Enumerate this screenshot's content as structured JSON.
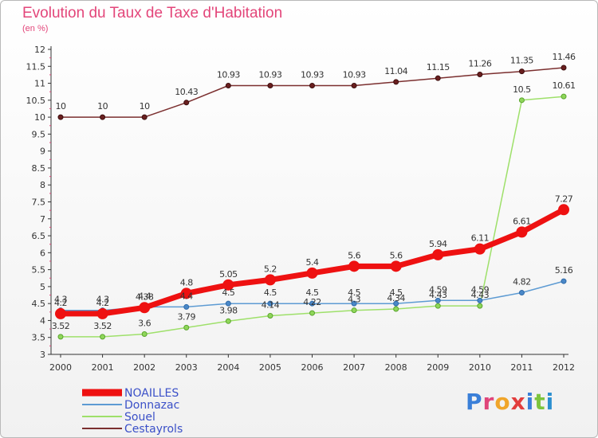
{
  "title": "Evolution du Taux de Taxe d'Habitation",
  "unit_label": "(en %)",
  "logo": {
    "text": "Proxiti",
    "letter_colors": [
      "#3a7fd8",
      "#e0457a",
      "#f0a52a",
      "#e23d3d",
      "#3a7fd8",
      "#7cc43e",
      "#2b8fd0"
    ]
  },
  "chart_data": {
    "type": "line",
    "title": "Evolution du Taux de Taxe d'Habitation",
    "ylabel": "(en %)",
    "xlabel": "",
    "x": [
      "2000",
      "2001",
      "2002",
      "2003",
      "2004",
      "2005",
      "2006",
      "2007",
      "2008",
      "2009",
      "2010",
      "2011",
      "2012"
    ],
    "ylim": [
      3,
      12
    ],
    "yticks": [
      "3",
      "3.5",
      "4",
      "4.5",
      "5",
      "5.5",
      "6",
      "6.5",
      "7",
      "7.5",
      "8",
      "8.5",
      "9",
      "9.5",
      "10",
      "10.5",
      "11",
      "11.5",
      "12"
    ],
    "grid": false,
    "legend_position": "bottom-left",
    "series": [
      {
        "name": "NOAILLES",
        "color": "#ee1111",
        "values": [
          4.2,
          4.2,
          4.38,
          4.8,
          5.05,
          5.2,
          5.4,
          5.6,
          5.6,
          5.94,
          6.11,
          6.61,
          7.27
        ],
        "labels": [
          "4.2",
          "4.2",
          "4.38",
          "4.8",
          "5.05",
          "5.2",
          "5.4",
          "5.6",
          "5.6",
          "5.94",
          "6.11",
          "6.61",
          "7.27"
        ]
      },
      {
        "name": "Donnazac",
        "color": "#5d9bd3",
        "values": [
          4.3,
          4.3,
          4.4,
          4.4,
          4.5,
          4.5,
          4.5,
          4.5,
          4.5,
          4.59,
          4.59,
          4.82,
          5.16
        ],
        "labels": [
          "4.3",
          "4.3",
          "4.4",
          "4.4",
          "4.5",
          "4.5",
          "4.5",
          "4.5",
          "4.5",
          "4.59",
          "4.59",
          "4.82",
          "5.16"
        ]
      },
      {
        "name": "Souel",
        "color": "#9ee06a",
        "values": [
          3.52,
          3.52,
          3.6,
          3.79,
          3.98,
          4.14,
          4.22,
          4.3,
          4.34,
          4.43,
          4.43,
          10.5,
          10.61
        ],
        "labels": [
          "3.52",
          "3.52",
          "3.6",
          "3.79",
          "3.98",
          "4.14",
          "4.22",
          "4.3",
          "4.34",
          "4.43",
          "4.43",
          "10.5",
          "10.61"
        ]
      },
      {
        "name": "Cestayrols",
        "color": "#7b2f2f",
        "values": [
          10,
          10,
          10,
          10.43,
          10.93,
          10.93,
          10.93,
          10.93,
          11.04,
          11.15,
          11.26,
          11.35,
          11.46
        ],
        "labels": [
          "10",
          "10",
          "10",
          "10.43",
          "10.93",
          "10.93",
          "10.93",
          "10.93",
          "11.04",
          "11.15",
          "11.26",
          "11.35",
          "11.46"
        ]
      }
    ]
  }
}
